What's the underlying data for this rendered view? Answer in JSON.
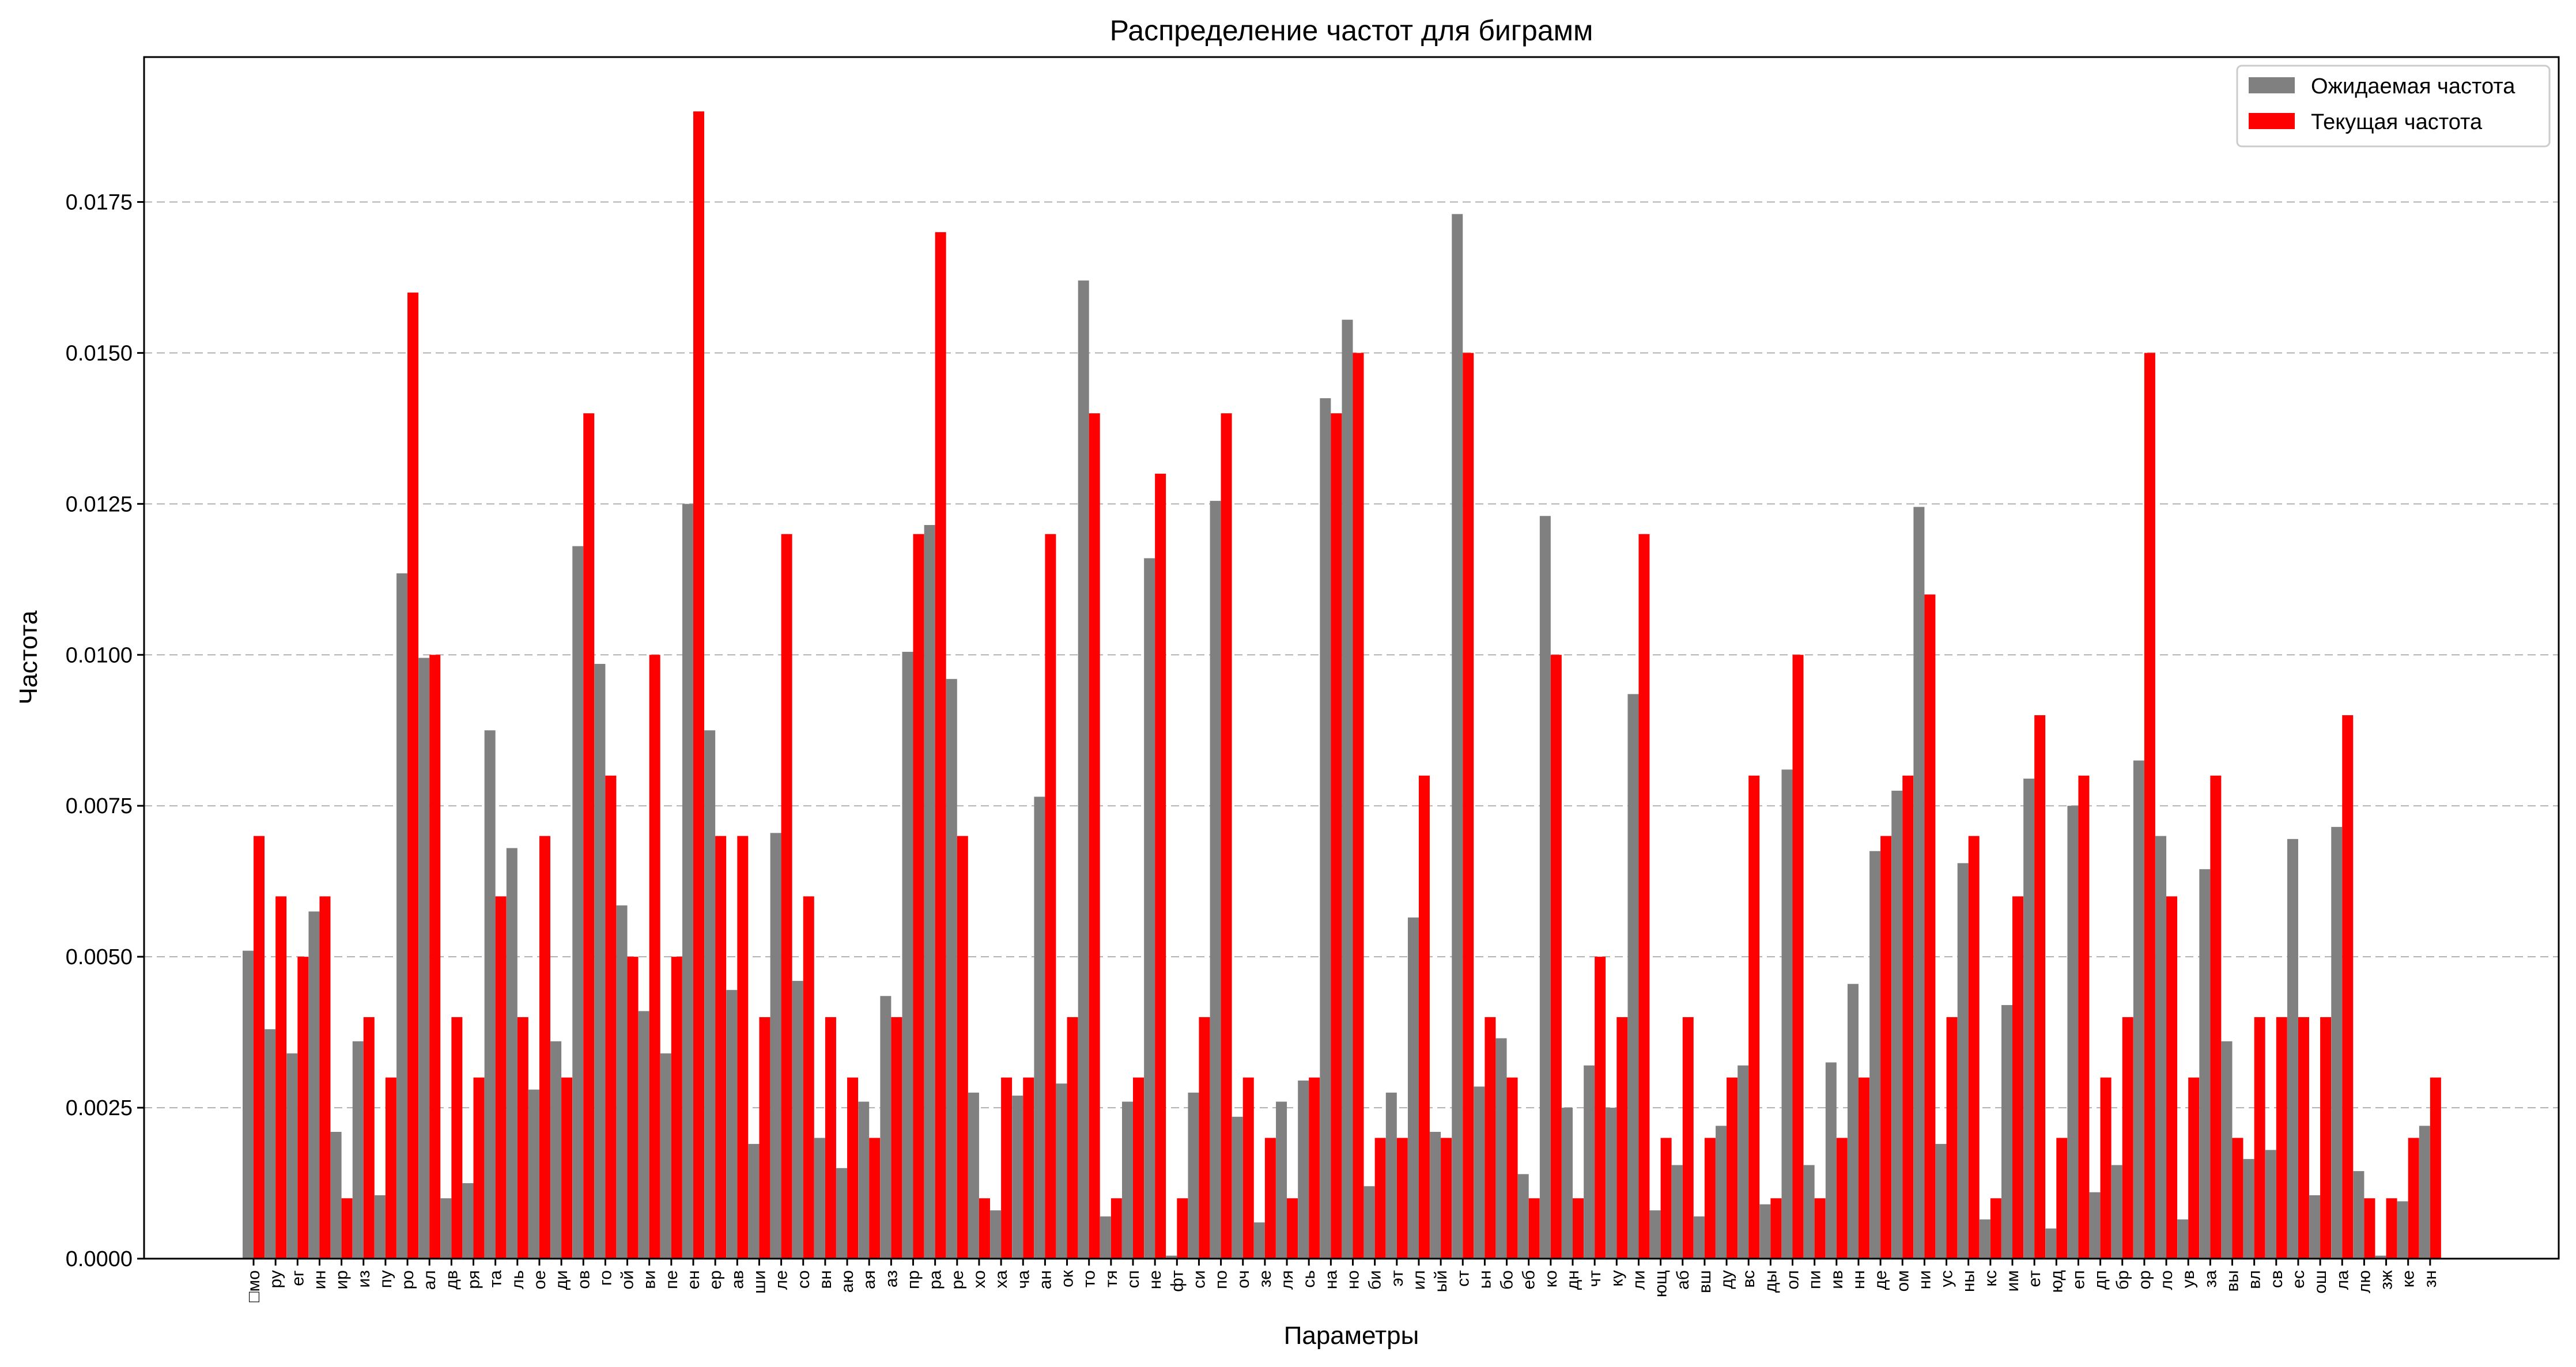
{
  "chart_data": {
    "type": "bar",
    "title": "Распределение частот для биграмм",
    "xlabel": "Параметры",
    "ylabel": "Частота",
    "ylim": [
      0,
      0.0199
    ],
    "yticks": [
      "0.0000",
      "0.0025",
      "0.0050",
      "0.0075",
      "0.0100",
      "0.0125",
      "0.0150",
      "0.0175"
    ],
    "grid": "y-dashed",
    "legend_position": "top-right",
    "categories": [
      "□мо",
      "ру",
      "ег",
      "ин",
      "ир",
      "из",
      "пу",
      "ро",
      "ал",
      "дв",
      "ря",
      "та",
      "ль",
      "ое",
      "ди",
      "ов",
      "го",
      "ой",
      "ви",
      "пе",
      "ен",
      "ер",
      "ав",
      "ши",
      "ле",
      "со",
      "вн",
      "аю",
      "ая",
      "аз",
      "пр",
      "ра",
      "ре",
      "хо",
      "ха",
      "ча",
      "ан",
      "ок",
      "то",
      "тя",
      "сп",
      "не",
      "фт",
      "си",
      "по",
      "оч",
      "зе",
      "ля",
      "сь",
      "на",
      "но",
      "би",
      "эт",
      "ил",
      "ый",
      "ст",
      "ьн",
      "бо",
      "еб",
      "ко",
      "дн",
      "чт",
      "ку",
      "ли",
      "ющ",
      "аб",
      "вш",
      "ду",
      "вс",
      "ды",
      "ол",
      "пи",
      "ив",
      "нн",
      "де",
      "ом",
      "ни",
      "ус",
      "ны",
      "кс",
      "им",
      "ет",
      "юд",
      "еп",
      "дп",
      "бр",
      "ор",
      "ло",
      "ув",
      "за",
      "вы",
      "вл",
      "св",
      "ес",
      "ош",
      "ла",
      "лю",
      "зж",
      "ке",
      "зн"
    ],
    "series": [
      {
        "name": "Ожидаемая частота",
        "color": "#808080",
        "values": [
          0.0051,
          0.0038,
          0.0034,
          0.00575,
          0.0021,
          0.0036,
          0.00105,
          0.01135,
          0.00995,
          0.001,
          0.00125,
          0.00875,
          0.0068,
          0.0028,
          0.0036,
          0.0118,
          0.00985,
          0.00585,
          0.0041,
          0.0034,
          0.0125,
          0.00875,
          0.00445,
          0.0019,
          0.00705,
          0.0046,
          0.002,
          0.0015,
          0.0026,
          0.00435,
          0.01005,
          0.01215,
          0.0096,
          0.00275,
          0.0008,
          0.0027,
          0.00765,
          0.0029,
          0.0162,
          0.0007,
          0.0026,
          0.0116,
          5e-05,
          0.00275,
          0.01255,
          0.00235,
          0.0006,
          0.0026,
          0.00295,
          0.01425,
          0.01555,
          0.0012,
          0.00275,
          0.00565,
          0.0021,
          0.0173,
          0.00285,
          0.00365,
          0.0014,
          0.0123,
          0.0025,
          0.0032,
          0.0025,
          0.00935,
          0.0008,
          0.00155,
          0.0007,
          0.0022,
          0.0032,
          0.0009,
          0.0081,
          0.00155,
          0.00325,
          0.00455,
          0.00675,
          0.00775,
          0.01245,
          0.0019,
          0.00655,
          0.00065,
          0.0042,
          0.00795,
          0.0005,
          0.0075,
          0.0011,
          0.00155,
          0.00825,
          0.007,
          0.00065,
          0.00645,
          0.0036,
          0.00165,
          0.0018,
          0.00695,
          0.00105,
          0.00715,
          0.00145,
          5e-05,
          0.00095,
          0.0022
        ]
      },
      {
        "name": "Текущая частота",
        "color": "#ff0000",
        "values": [
          0.007,
          0.006,
          0.005,
          0.006,
          0.001,
          0.004,
          0.003,
          0.016,
          0.01,
          0.004,
          0.003,
          0.006,
          0.004,
          0.007,
          0.003,
          0.014,
          0.008,
          0.005,
          0.01,
          0.005,
          0.019,
          0.007,
          0.007,
          0.004,
          0.012,
          0.006,
          0.004,
          0.003,
          0.002,
          0.004,
          0.012,
          0.017,
          0.007,
          0.001,
          0.003,
          0.003,
          0.012,
          0.004,
          0.014,
          0.001,
          0.003,
          0.013,
          0.001,
          0.004,
          0.014,
          0.003,
          0.002,
          0.001,
          0.003,
          0.014,
          0.015,
          0.002,
          0.002,
          0.008,
          0.002,
          0.015,
          0.004,
          0.003,
          0.001,
          0.01,
          0.001,
          0.005,
          0.004,
          0.012,
          0.002,
          0.004,
          0.002,
          0.003,
          0.008,
          0.001,
          0.01,
          0.001,
          0.002,
          0.003,
          0.007,
          0.008,
          0.011,
          0.004,
          0.007,
          0.001,
          0.006,
          0.009,
          0.002,
          0.008,
          0.003,
          0.004,
          0.015,
          0.006,
          0.003,
          0.008,
          0.002,
          0.004,
          0.004,
          0.004,
          0.004,
          0.009,
          0.001,
          0.001,
          0.002,
          0.003
        ]
      }
    ]
  }
}
